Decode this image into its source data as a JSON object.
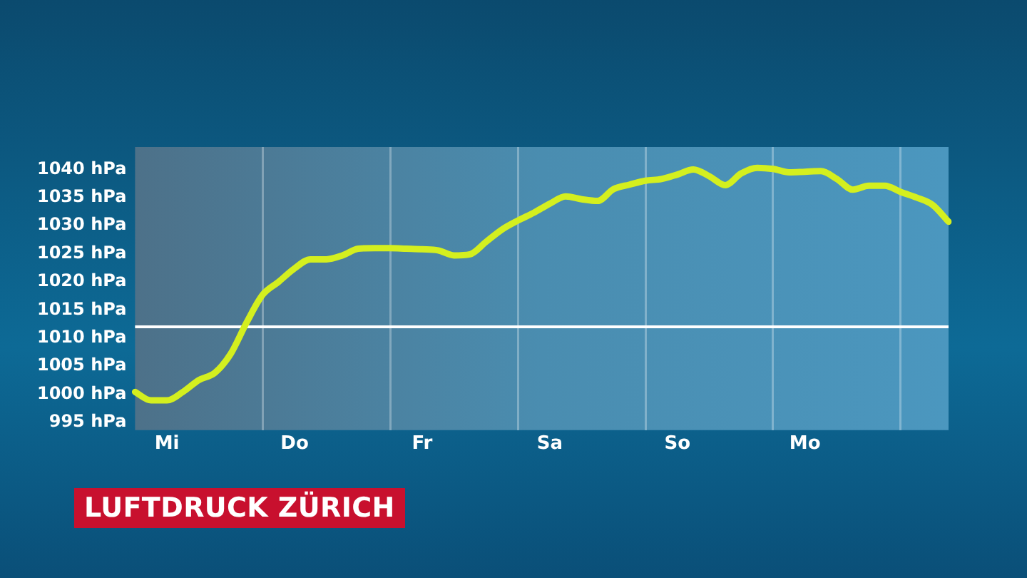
{
  "chart_data": {
    "type": "line",
    "title": "LUFTDRUCK ZÜRICH",
    "categories": [
      null,
      null,
      "Mi",
      null,
      null,
      null,
      null,
      null,
      null,
      null,
      "Do",
      null,
      null,
      null,
      null,
      null,
      null,
      null,
      "Fr",
      null,
      null,
      null,
      null,
      null,
      null,
      null,
      "Sa",
      null,
      null,
      null,
      null,
      null,
      null,
      null,
      "So",
      null,
      null,
      null,
      null,
      null,
      null,
      null,
      "Mo",
      null,
      null,
      null,
      null,
      null,
      null,
      null,
      null,
      null
    ],
    "series": [
      {
        "color": "#d4ef1f",
        "values": [
          1000.4,
          998.9,
          998.9,
          1000.4,
          1002.5,
          1003.8,
          1007.2,
          1012.8,
          1017.7,
          1020.0,
          1022.4,
          1024.0,
          1024.0,
          1024.7,
          1025.9,
          1026.0,
          1026.0,
          1025.9,
          1025.8,
          1025.6,
          1024.7,
          1024.9,
          1027.1,
          1029.3,
          1030.9,
          1032.3,
          1033.9,
          1035.2,
          1034.7,
          1034.4,
          1036.5,
          1037.3,
          1038.0,
          1038.3,
          1039.1,
          1040.0,
          1038.8,
          1037.2,
          1039.3,
          1040.3,
          1040.1,
          1039.5,
          1039.6,
          1039.7,
          1038.3,
          1036.4,
          1037.1,
          1037.1,
          1036.0,
          1035.0,
          1033.7,
          1030.7
        ]
      }
    ],
    "ylim": [
      993.6,
      1044
    ],
    "yticks": [
      {
        "value": 995,
        "label": "995 hPa"
      },
      {
        "value": 1000,
        "label": "1000 hPa"
      },
      {
        "value": 1005,
        "label": "1005 hPa"
      },
      {
        "value": 1010,
        "label": "1010 hPa"
      },
      {
        "value": 1015,
        "label": "1015 hPa"
      },
      {
        "value": 1020,
        "label": "1020 hPa"
      },
      {
        "value": 1025,
        "label": "1025 hPa"
      },
      {
        "value": 1030,
        "label": "1030 hPa"
      },
      {
        "value": 1035,
        "label": "1035 hPa"
      },
      {
        "value": 1040,
        "label": "1040 hPa"
      }
    ],
    "grid": "x",
    "marker": "none",
    "line_style": "solid",
    "ref_lines": [
      {
        "axis": "y",
        "value": 1012,
        "color": "#ffffff"
      }
    ]
  }
}
